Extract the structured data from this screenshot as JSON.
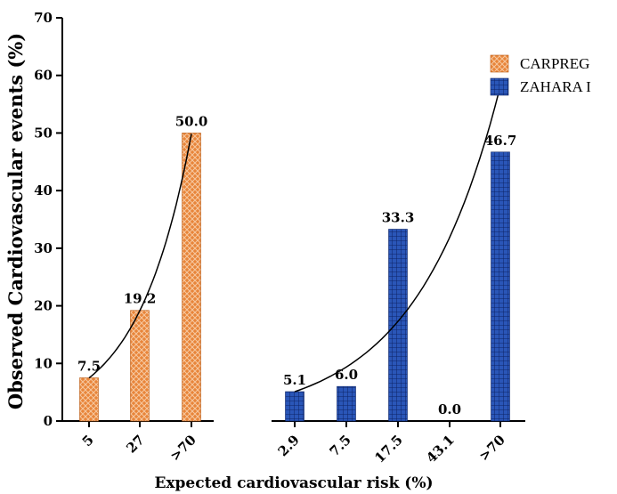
{
  "chart_data": {
    "type": "bar",
    "ylabel": "Observed Cardiovascular events (%)",
    "xlabel": "Expected cardiovascular risk  (%)",
    "ylim": [
      0,
      70
    ],
    "yticks": [
      0,
      10,
      20,
      30,
      40,
      50,
      60,
      70
    ],
    "grid": false,
    "legend_position": "top-right",
    "series": [
      {
        "name": "CARPREG",
        "color": "#e8853a",
        "pattern": "crosshatch-diamond",
        "categories": [
          "5",
          "27",
          ">70"
        ],
        "values": [
          7.5,
          19.2,
          50.0
        ],
        "labels": [
          "7.5",
          "19.2",
          "50.0"
        ],
        "trendline": "exponential"
      },
      {
        "name": "ZAHARA I",
        "color": "#2a56b8",
        "pattern": "grid",
        "categories": [
          "2.9",
          "7.5",
          "17.5",
          "43.1",
          ">70"
        ],
        "values": [
          5.1,
          6.0,
          33.3,
          0.0,
          46.7
        ],
        "labels": [
          "5.1",
          "6.0",
          "33.3",
          "0.0",
          "46.7"
        ],
        "trendline": "exponential"
      }
    ]
  }
}
